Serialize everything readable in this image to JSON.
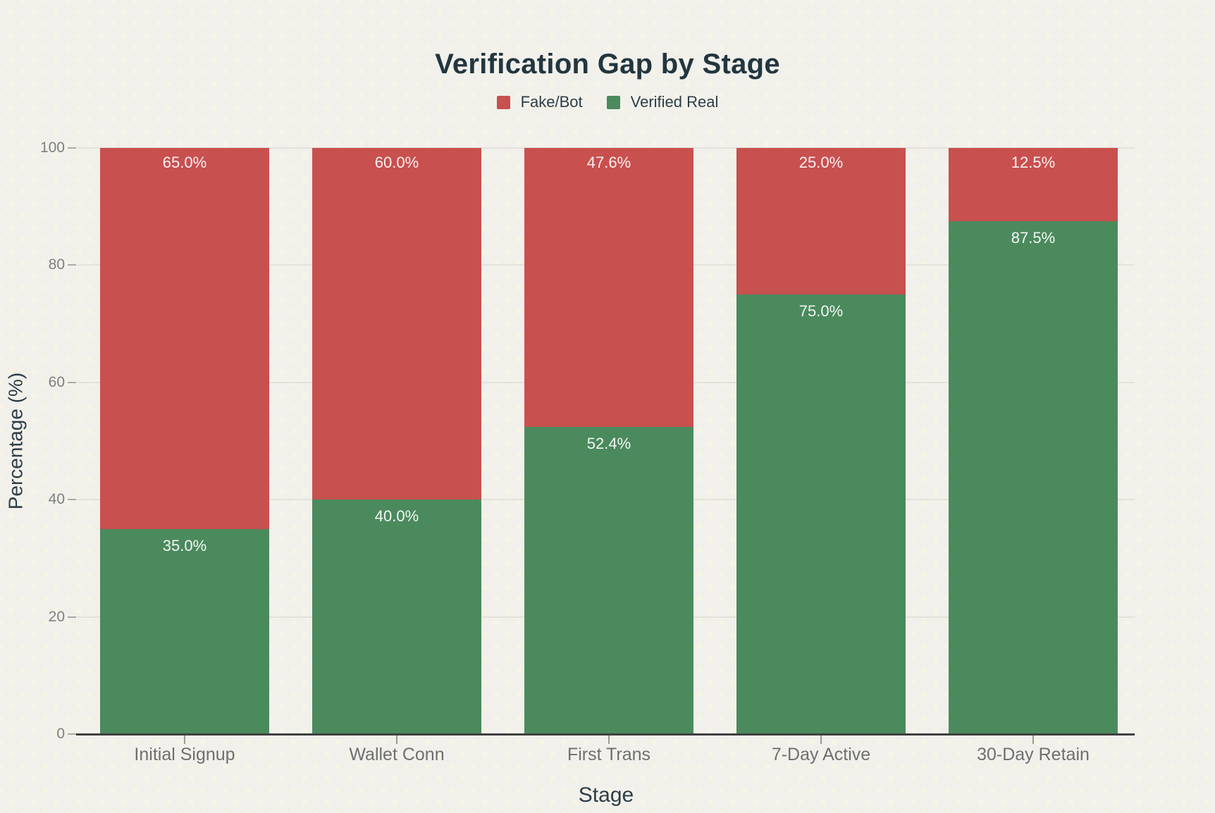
{
  "page": {
    "background_color": "#f1f0eb",
    "background_pattern": "subtle-cream-dot-grid"
  },
  "chart_data": {
    "type": "bar",
    "stacked": true,
    "title": "Verification Gap by Stage",
    "xlabel": "Stage",
    "ylabel": "Percentage (%)",
    "categories": [
      "Initial Signup",
      "Wallet Conn",
      "First Trans",
      "7-Day Active",
      "30-Day Retain"
    ],
    "series": [
      {
        "name": "Verified Real",
        "color": "#4b8a5d",
        "values": [
          35.0,
          40.0,
          52.4,
          75.0,
          87.5
        ],
        "labels": [
          "35.0%",
          "40.0%",
          "52.4%",
          "75.0%",
          "87.5%"
        ]
      },
      {
        "name": "Fake/Bot",
        "color": "#c8504f",
        "values": [
          65.0,
          60.0,
          47.6,
          25.0,
          12.5
        ],
        "labels": [
          "65.0%",
          "60.0%",
          "47.6%",
          "25.0%",
          "12.5%"
        ]
      }
    ],
    "legend": [
      {
        "label": "Fake/Bot",
        "color": "#c8504f"
      },
      {
        "label": "Verified Real",
        "color": "#4b8a5d"
      }
    ],
    "legend_position": "top-center",
    "ylim": [
      0,
      100
    ],
    "yticks": [
      0,
      20,
      40,
      60,
      80,
      100
    ],
    "grid": true,
    "colors": {
      "title_text": "#22363f",
      "axis_title_text": "#2c3e46",
      "tick_text": "#7f7f7f",
      "category_text": "#6f6f6f",
      "bar_value_text": "#ffffff",
      "gridline": "#e2e1da",
      "axis_line": "#404040"
    }
  }
}
